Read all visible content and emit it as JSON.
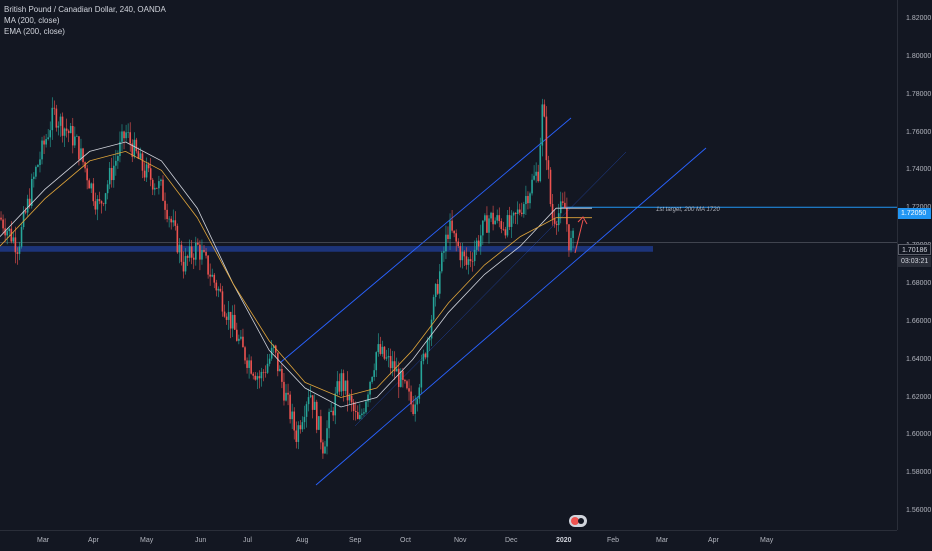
{
  "legend": {
    "symbol": "British Pound / Canadian Dollar, 240, OANDA",
    "ma": "MA (200, close)",
    "ema": "EMA (200, close)"
  },
  "annotation": "1st target, 200 MA 1720",
  "price_tags": {
    "target": "1.72050",
    "last": "1.70186",
    "countdown": "03:03:21"
  },
  "colors": {
    "background": "#131722",
    "up": "#26a69a",
    "down": "#ef5350",
    "ma": "#d1d4dc",
    "ema": "#e0a53a",
    "channel": "#2962ff",
    "support_zone": "#1e3a8a",
    "target_line": "#2196f3"
  },
  "chart_data": {
    "type": "candlestick",
    "ylim": [
      1.55,
      1.83
    ],
    "y_ticks": [
      "1.82000",
      "1.80000",
      "1.78000",
      "1.76000",
      "1.74000",
      "1.72000",
      "1.70000",
      "1.68000",
      "1.66000",
      "1.64000",
      "1.62000",
      "1.60000",
      "1.58000",
      "1.56000"
    ],
    "x_ticks": [
      "Mar",
      "Apr",
      "May",
      "Jun",
      "Jul",
      "Aug",
      "Sep",
      "Oct",
      "Nov",
      "Dec",
      "2020",
      "Feb",
      "Mar",
      "Apr",
      "May"
    ],
    "path": [
      [
        0,
        1.715
      ],
      [
        0.02,
        1.7
      ],
      [
        0.04,
        1.74
      ],
      [
        0.06,
        1.77
      ],
      [
        0.085,
        1.755
      ],
      [
        0.11,
        1.72
      ],
      [
        0.14,
        1.76
      ],
      [
        0.16,
        1.74
      ],
      [
        0.18,
        1.73
      ],
      [
        0.205,
        1.69
      ],
      [
        0.22,
        1.7
      ],
      [
        0.245,
        1.675
      ],
      [
        0.27,
        1.645
      ],
      [
        0.29,
        1.63
      ],
      [
        0.305,
        1.645
      ],
      [
        0.33,
        1.6
      ],
      [
        0.345,
        1.625
      ],
      [
        0.36,
        1.595
      ],
      [
        0.38,
        1.63
      ],
      [
        0.4,
        1.605
      ],
      [
        0.42,
        1.645
      ],
      [
        0.44,
        1.635
      ],
      [
        0.46,
        1.615
      ],
      [
        0.47,
        1.635
      ],
      [
        0.5,
        1.71
      ],
      [
        0.52,
        1.69
      ],
      [
        0.545,
        1.715
      ],
      [
        0.57,
        1.71
      ],
      [
        0.6,
        1.74
      ],
      [
        0.605,
        1.775
      ],
      [
        0.61,
        1.745
      ],
      [
        0.615,
        1.715
      ],
      [
        0.63,
        1.72
      ],
      [
        0.635,
        1.7
      ],
      [
        0.65,
        1.71
      ],
      [
        0.66,
        1.7
      ]
    ],
    "ma_path": [
      [
        0,
        1.705
      ],
      [
        0.05,
        1.73
      ],
      [
        0.1,
        1.75
      ],
      [
        0.14,
        1.755
      ],
      [
        0.18,
        1.745
      ],
      [
        0.22,
        1.72
      ],
      [
        0.26,
        1.68
      ],
      [
        0.3,
        1.645
      ],
      [
        0.34,
        1.625
      ],
      [
        0.38,
        1.615
      ],
      [
        0.42,
        1.62
      ],
      [
        0.46,
        1.64
      ],
      [
        0.5,
        1.665
      ],
      [
        0.54,
        1.685
      ],
      [
        0.58,
        1.7
      ],
      [
        0.62,
        1.72
      ],
      [
        0.66,
        1.72
      ]
    ],
    "ema_path": [
      [
        0,
        1.7
      ],
      [
        0.05,
        1.725
      ],
      [
        0.1,
        1.745
      ],
      [
        0.14,
        1.75
      ],
      [
        0.18,
        1.74
      ],
      [
        0.22,
        1.715
      ],
      [
        0.26,
        1.68
      ],
      [
        0.3,
        1.65
      ],
      [
        0.34,
        1.628
      ],
      [
        0.38,
        1.62
      ],
      [
        0.42,
        1.625
      ],
      [
        0.46,
        1.645
      ],
      [
        0.5,
        1.67
      ],
      [
        0.54,
        1.69
      ],
      [
        0.58,
        1.705
      ],
      [
        0.62,
        1.715
      ],
      [
        0.66,
        1.715
      ]
    ],
    "horizontal_levels": {
      "target": 1.7205,
      "last": 1.70186
    },
    "support_zone": [
      1.697,
      1.7
    ]
  }
}
